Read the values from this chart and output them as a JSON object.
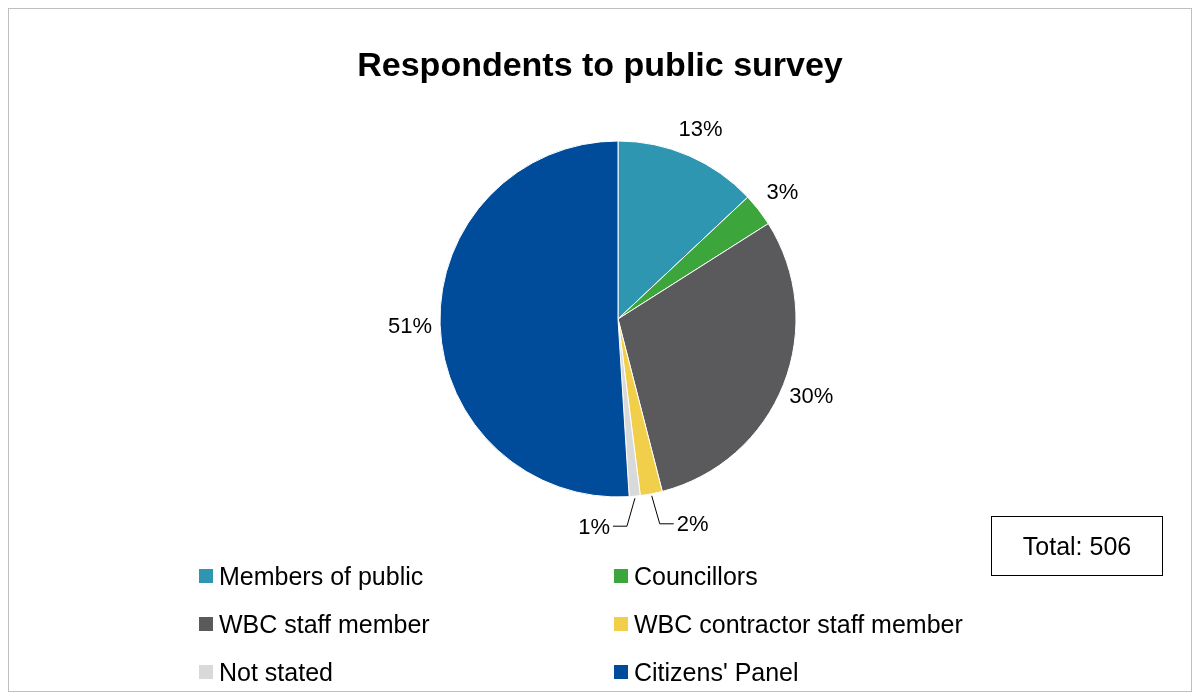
{
  "chart_data": {
    "type": "pie",
    "title": "Respondents to public survey",
    "categories": [
      "Members of public",
      "Councillors",
      "WBC staff member",
      "WBC contractor staff member",
      "Not stated",
      "Citizens' Panel"
    ],
    "values": [
      13,
      3,
      30,
      2,
      1,
      51
    ],
    "value_labels": [
      "13%",
      "3%",
      "30%",
      "2%",
      "1%",
      "51%"
    ],
    "colors": [
      "#2e96b0",
      "#3ca63c",
      "#5a5a5c",
      "#f2cf4a",
      "#d9d9d9",
      "#004b9a"
    ],
    "legend": "bottom",
    "annotations": [
      "Total: 506"
    ]
  }
}
